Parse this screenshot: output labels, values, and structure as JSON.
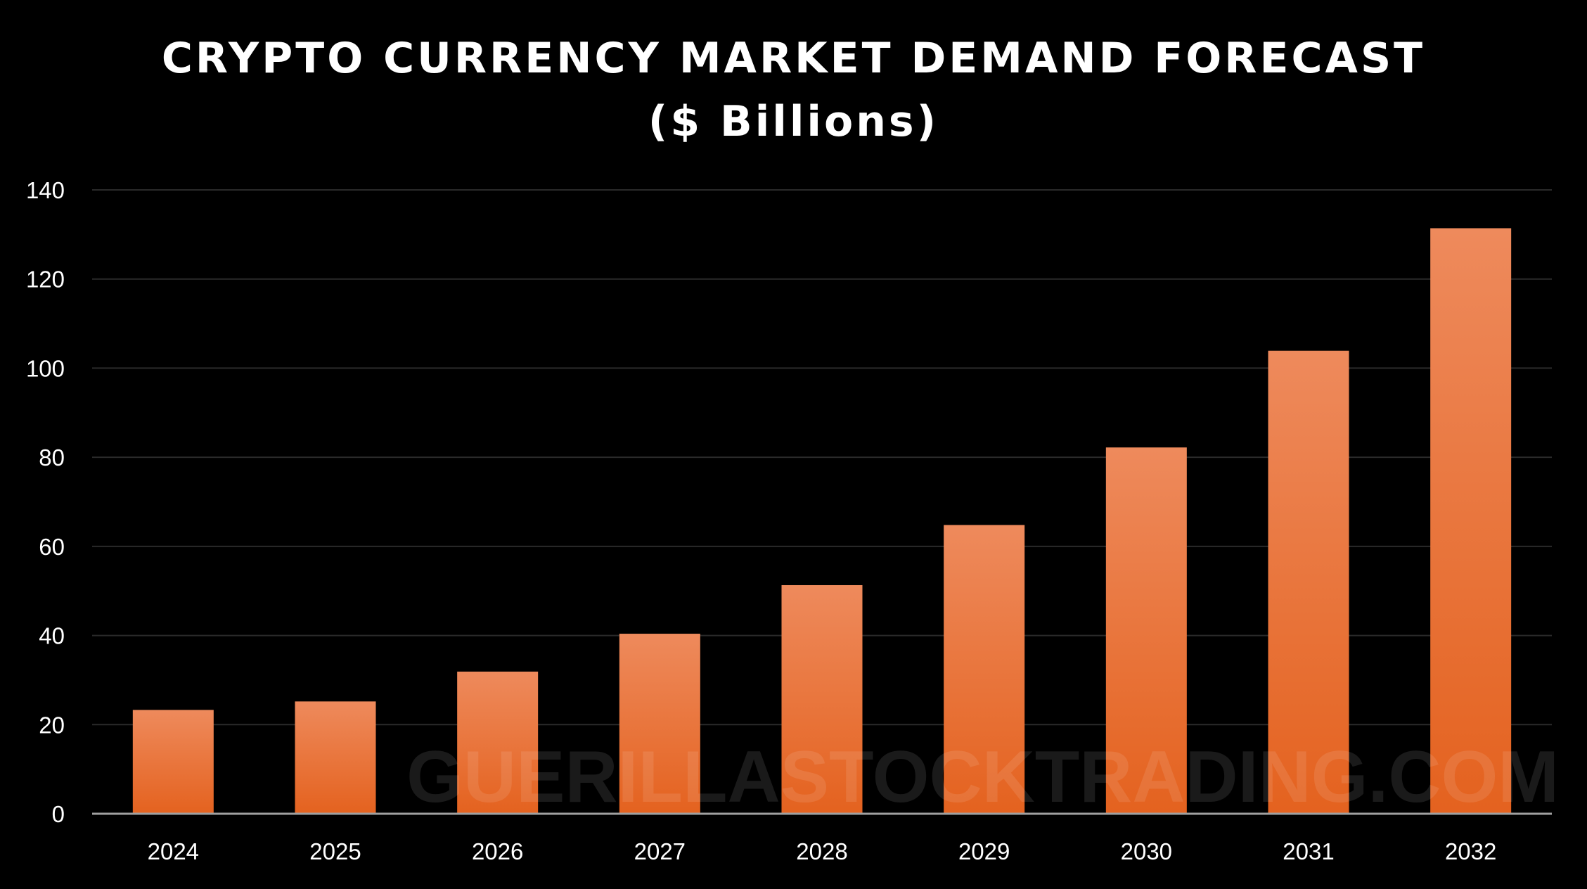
{
  "title": {
    "line1": "CRYPTO CURRENCY MARKET DEMAND FORECAST",
    "line2": "($ Billions)"
  },
  "watermark": "GUERILLASTOCKTRADING.COM",
  "colors": {
    "background": "#000000",
    "bar_top": "#ee8a5c",
    "bar_bottom": "#e4621f",
    "gridline": "#2a2a2a",
    "axis": "#a0a0a0",
    "text": "#ffffff"
  },
  "chart_data": {
    "type": "bar",
    "title": "CRYPTO CURRENCY MARKET DEMAND FORECAST ($ Billions)",
    "categories": [
      "2024",
      "2025",
      "2026",
      "2027",
      "2028",
      "2029",
      "2030",
      "2031",
      "2032"
    ],
    "values": [
      23.3,
      25.2,
      31.9,
      40.4,
      51.3,
      64.8,
      82.2,
      103.9,
      131.4
    ],
    "ylim": [
      0,
      140
    ],
    "yticks": [
      0,
      20,
      40,
      60,
      80,
      100,
      120,
      140
    ],
    "xlabel": "",
    "ylabel": "",
    "grid": true,
    "legend": "none"
  }
}
